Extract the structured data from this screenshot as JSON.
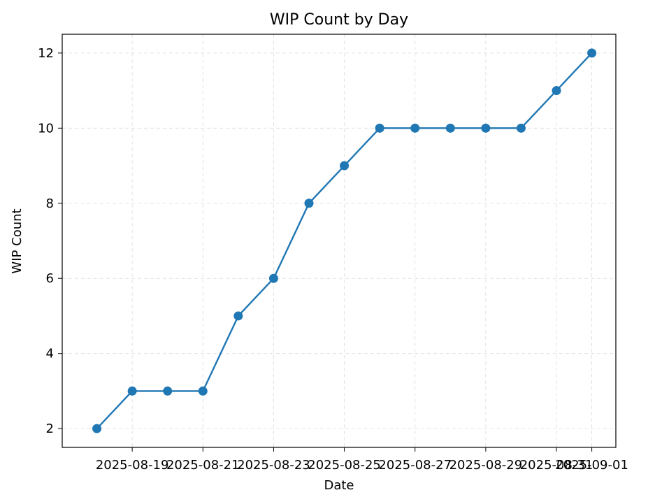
{
  "chart_data": {
    "type": "line",
    "title": "WIP Count by Day",
    "xlabel": "Date",
    "ylabel": "WIP Count",
    "x": [
      "2025-08-18",
      "2025-08-19",
      "2025-08-20",
      "2025-08-21",
      "2025-08-22",
      "2025-08-23",
      "2025-08-24",
      "2025-08-25",
      "2025-08-26",
      "2025-08-27",
      "2025-08-28",
      "2025-08-29",
      "2025-08-30",
      "2025-08-31",
      "2025-09-01"
    ],
    "series": [
      {
        "values": [
          2,
          3,
          3,
          3,
          5,
          6,
          8,
          9,
          10,
          10,
          10,
          10,
          10,
          11,
          12
        ],
        "color": "#1f77b4",
        "marker": "circle"
      }
    ],
    "x_ticks": [
      "2025-08-19",
      "2025-08-21",
      "2025-08-23",
      "2025-08-25",
      "2025-08-27",
      "2025-08-29",
      "2025-08-31",
      "2025-09-01"
    ],
    "y_ticks": [
      2,
      4,
      6,
      8,
      10,
      12
    ],
    "xlim": [
      "2025-08-17",
      "2025-09-01"
    ],
    "ylim": [
      1.5,
      12.5
    ],
    "grid": true,
    "legend": "none"
  }
}
